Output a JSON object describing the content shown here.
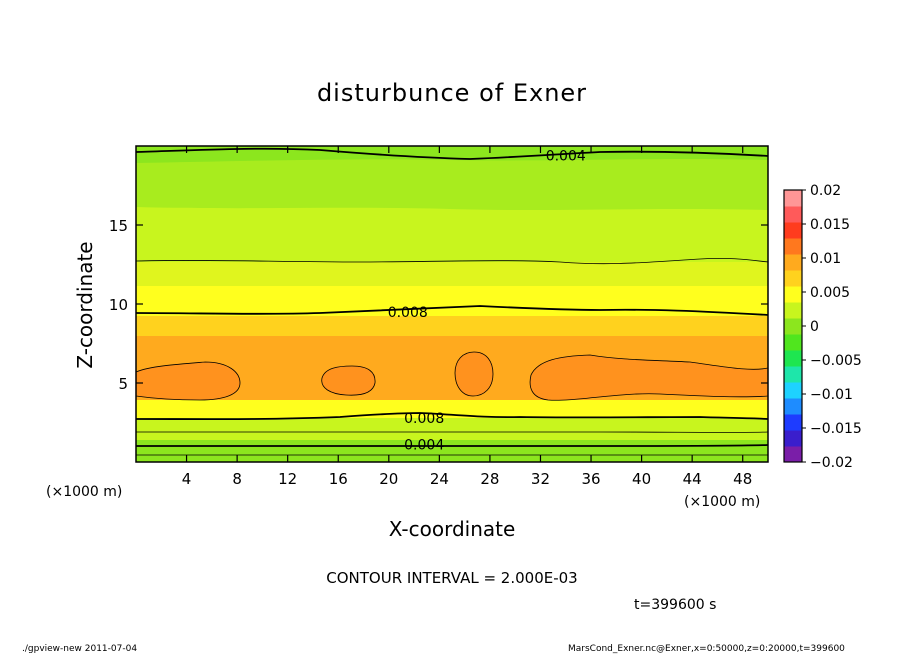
{
  "chart_data": {
    "type": "contour",
    "title": "disturbunce of Exner",
    "xlabel": "X-coordinate",
    "ylabel": "Z-coordinate",
    "x_unit": "(×1000 m)",
    "y_unit": "(×1000 m)",
    "xlim": [
      0,
      50
    ],
    "ylim": [
      0,
      20
    ],
    "x_ticks": [
      4,
      8,
      12,
      16,
      20,
      24,
      28,
      32,
      36,
      40,
      44,
      48
    ],
    "y_ticks": [
      5,
      10,
      15
    ],
    "contour_interval_text": "CONTOUR INTERVAL = 2.000E-03",
    "time_text": "t=399600 s",
    "colorbar": {
      "min": -0.02,
      "max": 0.02,
      "step": 0.0025,
      "tick_labels": [
        "0.02",
        "0.015",
        "0.01",
        "0.005",
        "0",
        "−0.005",
        "−0.01",
        "−0.015",
        "−0.02"
      ],
      "colors": [
        "#7a1ea8",
        "#3a1ecc",
        "#1e3cff",
        "#1e8cff",
        "#1ed2ff",
        "#1ee6aa",
        "#1ee650",
        "#50e61e",
        "#8ce61e",
        "#c8f51e",
        "#ffff1e",
        "#ffd21e",
        "#ffaa1e",
        "#ff781e",
        "#ff3c1e",
        "#ff5a5a",
        "#ff9696"
      ]
    },
    "layers_approx": [
      {
        "z": [
          19,
          20
        ],
        "value_band": "0.0025-0.005"
      },
      {
        "z": [
          13,
          19
        ],
        "value_band": "0.005-0.0075"
      },
      {
        "z": [
          11,
          13
        ],
        "value_band": "0.0075-0.008"
      },
      {
        "z": [
          8,
          11
        ],
        "value_band": "0.008-0.01"
      },
      {
        "z": [
          3,
          8
        ],
        "value_band": "0.01-0.012"
      },
      {
        "z": [
          0,
          3
        ],
        "value_band": "0-0.008"
      }
    ],
    "contour_labels": [
      {
        "text": "0.004",
        "x": 34,
        "z": 19.4
      },
      {
        "text": "0.008",
        "x": 21.5,
        "z": 9.5
      },
      {
        "text": "0.008",
        "x": 22.8,
        "z": 2.8
      },
      {
        "text": "0.004",
        "x": 22.8,
        "z": 1.1
      }
    ]
  },
  "footer": {
    "left": "./gpview-new   2011-07-04",
    "right": "MarsCond_Exner.nc@Exner,x=0:50000,z=0:20000,t=399600"
  }
}
